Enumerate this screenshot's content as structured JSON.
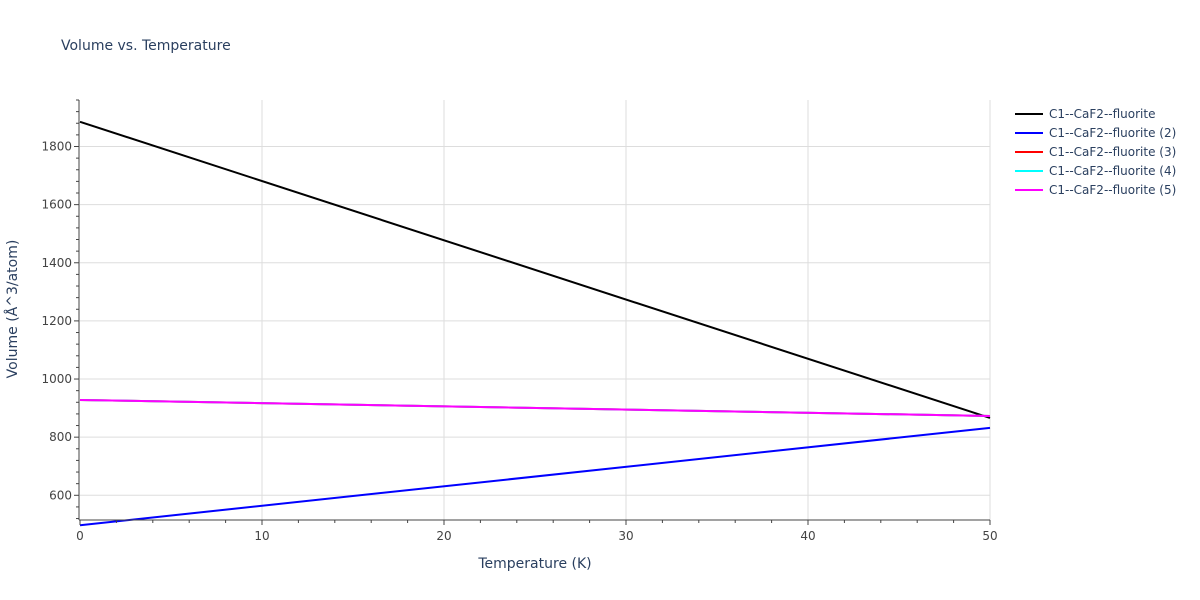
{
  "chart_data": {
    "type": "line",
    "title": "Volume vs. Temperature",
    "xlabel": "Temperature (K)",
    "ylabel": "Volume (Å^3/atom)",
    "xlim": [
      0,
      50
    ],
    "ylim": [
      515,
      1960
    ],
    "x_ticks": [
      0,
      10,
      20,
      30,
      40,
      50
    ],
    "y_ticks": [
      600,
      800,
      1000,
      1200,
      1400,
      1600,
      1800
    ],
    "grid": true,
    "legend_position": "top-right, outside plot",
    "series": [
      {
        "name": "C1--CaF2--fluorite",
        "color": "#000000",
        "x": [
          0,
          50
        ],
        "y": [
          1885,
          866
        ]
      },
      {
        "name": "C1--CaF2--fluorite (2)",
        "color": "#0000ff",
        "x": [
          0,
          50
        ],
        "y": [
          497,
          832
        ]
      },
      {
        "name": "C1--CaF2--fluorite (3)",
        "color": "#ff0000",
        "x": [
          0,
          50
        ],
        "y": [
          928,
          873
        ]
      },
      {
        "name": "C1--CaF2--fluorite (4)",
        "color": "#00ffff",
        "x": [
          0,
          50
        ],
        "y": [
          928,
          873
        ]
      },
      {
        "name": "C1--CaF2--fluorite (5)",
        "color": "#ff00ff",
        "x": [
          0,
          50
        ],
        "y": [
          928,
          873
        ]
      }
    ]
  }
}
